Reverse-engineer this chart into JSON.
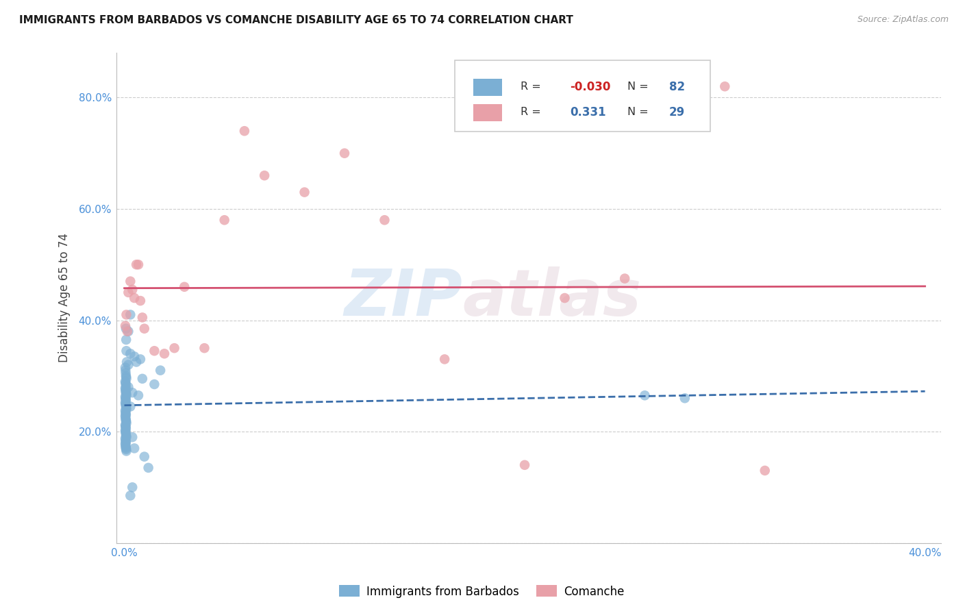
{
  "title": "IMMIGRANTS FROM BARBADOS VS COMANCHE DISABILITY AGE 65 TO 74 CORRELATION CHART",
  "source": "Source: ZipAtlas.com",
  "ylabel": "Disability Age 65 to 74",
  "blue_color": "#7bafd4",
  "pink_color": "#e8a0a8",
  "blue_line_color": "#3a6eaa",
  "pink_line_color": "#d45070",
  "legend_R_blue": "-0.030",
  "legend_N_blue": "82",
  "legend_R_pink": "0.331",
  "legend_N_pink": "29",
  "legend_label_blue": "Immigrants from Barbados",
  "legend_label_pink": "Comanche",
  "watermark_zip": "ZIP",
  "watermark_atlas": "atlas",
  "blue_x": [
    0.0008,
    0.0009,
    0.001,
    0.0012,
    0.0005,
    0.0006,
    0.0007,
    0.0008,
    0.0009,
    0.001,
    0.0005,
    0.0006,
    0.0007,
    0.0008,
    0.0005,
    0.0006,
    0.0007,
    0.0008,
    0.0009,
    0.001,
    0.0005,
    0.0006,
    0.0007,
    0.0008,
    0.0005,
    0.0006,
    0.0007,
    0.0008,
    0.0009,
    0.001,
    0.0005,
    0.0006,
    0.0007,
    0.0008,
    0.0005,
    0.0006,
    0.0007,
    0.0008,
    0.0009,
    0.001,
    0.0005,
    0.0006,
    0.0007,
    0.0008,
    0.0005,
    0.0006,
    0.0007,
    0.0008,
    0.0009,
    0.001,
    0.0005,
    0.0006,
    0.0007,
    0.0008,
    0.0005,
    0.0006,
    0.0007,
    0.0008,
    0.0009,
    0.001,
    0.002,
    0.003,
    0.004,
    0.005,
    0.006,
    0.007,
    0.008,
    0.009,
    0.01,
    0.012,
    0.015,
    0.018,
    0.002,
    0.003,
    0.004,
    0.005,
    0.002,
    0.003,
    0.26,
    0.28,
    0.003,
    0.004
  ],
  "blue_y": [
    0.385,
    0.365,
    0.345,
    0.325,
    0.315,
    0.31,
    0.305,
    0.3,
    0.298,
    0.295,
    0.29,
    0.288,
    0.285,
    0.28,
    0.278,
    0.275,
    0.272,
    0.27,
    0.268,
    0.265,
    0.263,
    0.26,
    0.258,
    0.255,
    0.252,
    0.25,
    0.248,
    0.245,
    0.243,
    0.24,
    0.238,
    0.235,
    0.232,
    0.23,
    0.228,
    0.225,
    0.222,
    0.22,
    0.218,
    0.215,
    0.212,
    0.21,
    0.208,
    0.205,
    0.202,
    0.2,
    0.198,
    0.195,
    0.192,
    0.19,
    0.188,
    0.185,
    0.182,
    0.18,
    0.178,
    0.175,
    0.172,
    0.17,
    0.168,
    0.165,
    0.28,
    0.34,
    0.27,
    0.335,
    0.325,
    0.265,
    0.33,
    0.295,
    0.155,
    0.135,
    0.285,
    0.31,
    0.32,
    0.245,
    0.19,
    0.17,
    0.38,
    0.41,
    0.265,
    0.26,
    0.085,
    0.1
  ],
  "pink_x": [
    0.0005,
    0.001,
    0.0015,
    0.002,
    0.003,
    0.004,
    0.005,
    0.006,
    0.007,
    0.008,
    0.009,
    0.01,
    0.015,
    0.02,
    0.025,
    0.03,
    0.04,
    0.05,
    0.06,
    0.07,
    0.09,
    0.11,
    0.13,
    0.16,
    0.2,
    0.22,
    0.25,
    0.3,
    0.32
  ],
  "pink_y": [
    0.39,
    0.41,
    0.38,
    0.45,
    0.47,
    0.455,
    0.44,
    0.5,
    0.5,
    0.435,
    0.405,
    0.385,
    0.345,
    0.34,
    0.35,
    0.46,
    0.35,
    0.58,
    0.74,
    0.66,
    0.63,
    0.7,
    0.58,
    0.33,
    0.14,
    0.44,
    0.475,
    0.82,
    0.13
  ],
  "xlim_min": -0.004,
  "xlim_max": 0.408,
  "ylim_min": 0.0,
  "ylim_max": 0.88,
  "xtick_positions": [
    0.0,
    0.08,
    0.16,
    0.24,
    0.32,
    0.4
  ],
  "ytick_positions": [
    0.0,
    0.2,
    0.4,
    0.6,
    0.8
  ],
  "tick_color": "#4a90d9",
  "grid_color": "#cccccc",
  "title_fontsize": 11,
  "label_fontsize": 11,
  "tick_fontsize": 11
}
